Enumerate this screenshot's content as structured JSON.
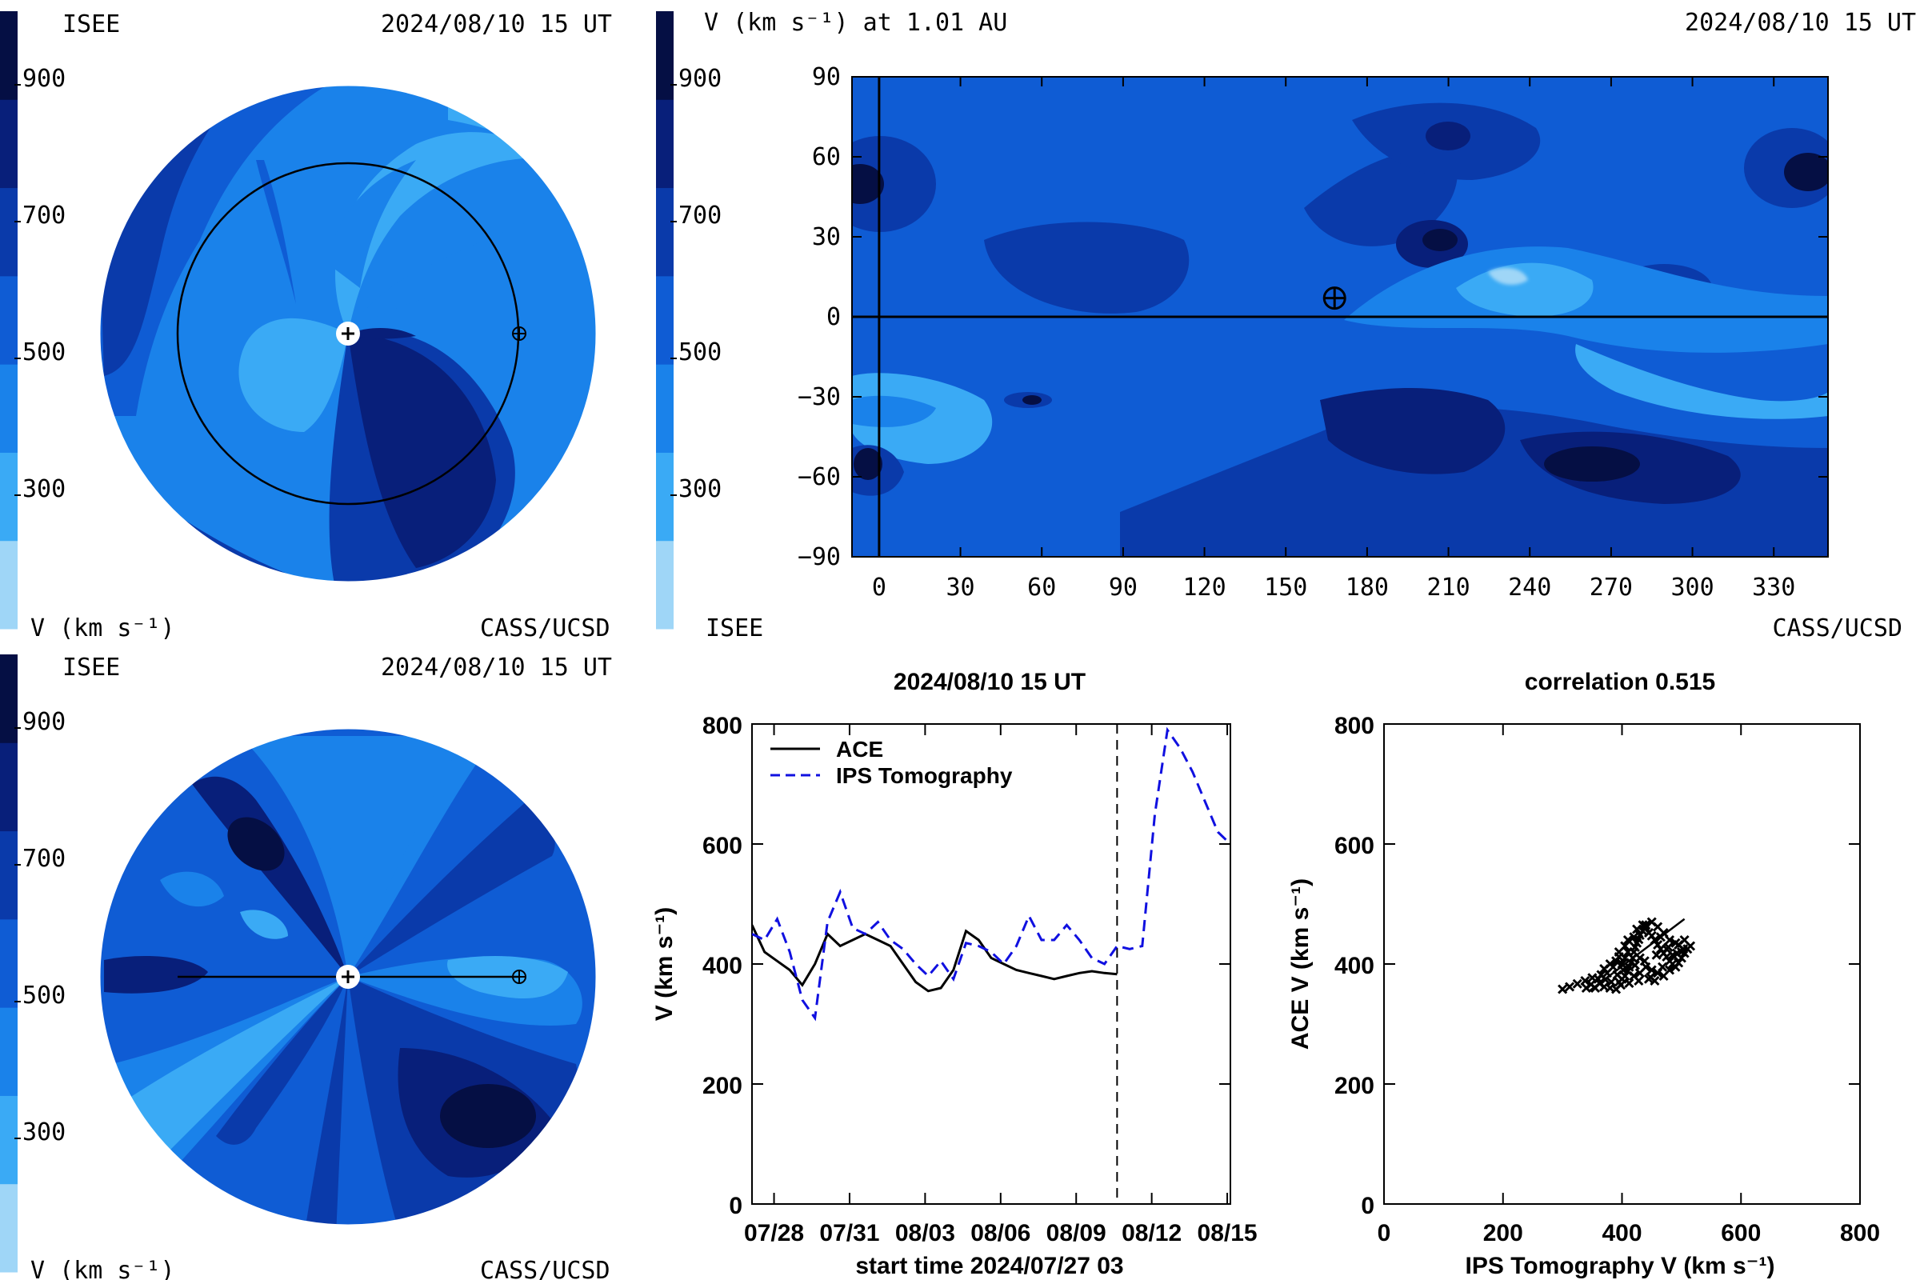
{
  "colors": {
    "levels": [
      "#9fd6f7",
      "#3aaaf5",
      "#1a82ea",
      "#0f5cd4",
      "#0a3aaa",
      "#081f7a",
      "#050f44"
    ],
    "line_obs": "#000000",
    "line_model": "#1010e0"
  },
  "colorbar": {
    "ticks": [
      "900",
      "700",
      "500",
      "300"
    ],
    "unit_label": "V (km s⁻¹)"
  },
  "panel_top_left": {
    "label_left": "ISEE",
    "datetime": "2024/08/10 15 UT",
    "credit": "CASS/UCSD",
    "unit_label": "V (km s⁻¹)"
  },
  "panel_top_right": {
    "title": "V (km s⁻¹) at 1.01 AU",
    "datetime": "2024/08/10 15 UT",
    "label_left": "ISEE",
    "credit": "CASS/UCSD"
  },
  "panel_bottom_left": {
    "label_left": "ISEE",
    "datetime": "2024/08/10 15 UT",
    "credit": "CASS/UCSD",
    "unit_label": "V (km s⁻¹)"
  },
  "timeseries": {
    "title": "2024/08/10 15 UT",
    "ylabel": "V (km s⁻¹)",
    "xlabel": "start time 2024/07/27 03",
    "legend_obs": "ACE",
    "legend_model": "IPS Tomography"
  },
  "scatter": {
    "title": "correlation 0.515",
    "xlabel": "IPS Tomography V (km s⁻¹)",
    "ylabel": "ACE V (km s⁻¹)"
  },
  "chart_data": [
    {
      "type": "heatmap",
      "name": "synoptic map",
      "xlim": [
        -10,
        350
      ],
      "ylim": [
        -90,
        90
      ],
      "x_ticks": [
        0,
        30,
        60,
        90,
        120,
        150,
        180,
        210,
        240,
        270,
        300,
        330
      ],
      "y_ticks": [
        90,
        60,
        30,
        0,
        -30,
        -60,
        -90
      ],
      "earth_position": [
        168,
        7
      ],
      "zero_meridian": 0,
      "equator": 0
    },
    {
      "type": "line",
      "x_ticks": [
        "07/28",
        "07/31",
        "08/03",
        "08/06",
        "08/09",
        "08/12",
        "08/15"
      ],
      "x_tick_days": [
        0.875,
        3.875,
        6.875,
        9.875,
        12.875,
        15.875,
        18.875
      ],
      "xlim": [
        0,
        19.0
      ],
      "ylim": [
        0,
        800
      ],
      "y_ticks": [
        0,
        200,
        400,
        600,
        800
      ],
      "current_time_day": 14.5,
      "series": [
        {
          "name": "ACE",
          "style": "solid",
          "x": [
            0,
            0.5,
            1,
            1.5,
            2,
            2.5,
            3,
            3.5,
            4,
            4.5,
            5,
            5.5,
            6,
            6.5,
            7,
            7.5,
            8,
            8.5,
            9,
            9.5,
            10,
            10.5,
            11,
            11.5,
            12,
            12.5,
            13,
            13.5,
            14,
            14.5
          ],
          "y": [
            465,
            420,
            405,
            390,
            365,
            400,
            450,
            430,
            440,
            450,
            440,
            430,
            400,
            370,
            355,
            360,
            390,
            455,
            440,
            410,
            400,
            390,
            385,
            380,
            375,
            380,
            385,
            388,
            385,
            383
          ]
        },
        {
          "name": "IPS Tomography",
          "style": "dashed",
          "x": [
            0,
            0.5,
            1,
            1.5,
            2,
            2.5,
            3,
            3.5,
            4,
            4.5,
            5,
            5.5,
            6,
            6.5,
            7,
            7.5,
            8,
            8.5,
            9,
            9.5,
            10,
            10.5,
            11,
            11.5,
            12,
            12.5,
            13,
            13.5,
            14,
            14.5,
            15,
            15.5,
            16,
            16.5,
            17,
            17.5,
            18,
            18.5,
            19
          ],
          "y": [
            450,
            440,
            475,
            420,
            340,
            310,
            470,
            520,
            460,
            450,
            470,
            440,
            425,
            400,
            380,
            405,
            375,
            435,
            430,
            420,
            400,
            430,
            480,
            440,
            440,
            465,
            440,
            410,
            400,
            430,
            425,
            430,
            650,
            790,
            760,
            720,
            670,
            620,
            600
          ]
        }
      ]
    },
    {
      "type": "scatter",
      "xlim": [
        0,
        800
      ],
      "ylim": [
        0,
        800
      ],
      "x_ticks": [
        0,
        200,
        400,
        600,
        800
      ],
      "y_ticks": [
        0,
        200,
        400,
        600,
        800
      ],
      "correlation": 0.515,
      "fit_line": [
        [
          345,
          355
        ],
        [
          505,
          475
        ]
      ],
      "points": [
        [
          300,
          358
        ],
        [
          312,
          362
        ],
        [
          325,
          367
        ],
        [
          338,
          372
        ],
        [
          350,
          377
        ],
        [
          360,
          375
        ],
        [
          365,
          382
        ],
        [
          340,
          360
        ],
        [
          355,
          360
        ],
        [
          370,
          362
        ],
        [
          380,
          360
        ],
        [
          390,
          358
        ],
        [
          395,
          370
        ],
        [
          400,
          375
        ],
        [
          405,
          380
        ],
        [
          410,
          388
        ],
        [
          412,
          395
        ],
        [
          415,
          402
        ],
        [
          418,
          410
        ],
        [
          420,
          420
        ],
        [
          422,
          428
        ],
        [
          425,
          435
        ],
        [
          428,
          441
        ],
        [
          430,
          448
        ],
        [
          435,
          455
        ],
        [
          440,
          460
        ],
        [
          445,
          452
        ],
        [
          450,
          447
        ],
        [
          455,
          440
        ],
        [
          460,
          432
        ],
        [
          465,
          425
        ],
        [
          470,
          418
        ],
        [
          475,
          412
        ],
        [
          480,
          405
        ],
        [
          485,
          400
        ],
        [
          490,
          395
        ],
        [
          495,
          402
        ],
        [
          500,
          410
        ],
        [
          505,
          418
        ],
        [
          510,
          425
        ],
        [
          515,
          430
        ],
        [
          400,
          400
        ],
        [
          405,
          410
        ],
        [
          410,
          420
        ],
        [
          430,
          410
        ],
        [
          440,
          395
        ],
        [
          450,
          390
        ],
        [
          460,
          385
        ],
        [
          470,
          380
        ],
        [
          480,
          390
        ],
        [
          420,
          380
        ],
        [
          430,
          385
        ],
        [
          445,
          375
        ],
        [
          455,
          372
        ],
        [
          385,
          395
        ],
        [
          390,
          405
        ],
        [
          395,
          412
        ],
        [
          405,
          430
        ],
        [
          420,
          445
        ],
        [
          435,
          465
        ],
        [
          450,
          470
        ],
        [
          460,
          462
        ],
        [
          470,
          452
        ],
        [
          480,
          440
        ],
        [
          490,
          435
        ],
        [
          500,
          420
        ],
        [
          375,
          385
        ],
        [
          370,
          392
        ],
        [
          380,
          400
        ],
        [
          395,
          420
        ],
        [
          410,
          440
        ],
        [
          425,
          458
        ],
        [
          440,
          465
        ],
        [
          465,
          445
        ],
        [
          475,
          425
        ],
        [
          485,
          415
        ],
        [
          495,
          432
        ],
        [
          505,
          440
        ],
        [
          382,
          370
        ],
        [
          398,
          365
        ],
        [
          412,
          368
        ],
        [
          428,
          372
        ],
        [
          448,
          378
        ],
        [
          468,
          395
        ],
        [
          488,
          412
        ],
        [
          503,
          425
        ],
        [
          362,
          368
        ],
        [
          348,
          366
        ],
        [
          372,
          374
        ],
        [
          392,
          382
        ],
        [
          402,
          390
        ],
        [
          422,
          398
        ],
        [
          438,
          405
        ],
        [
          458,
          415
        ],
        [
          478,
          428
        ],
        [
          492,
          418
        ]
      ]
    }
  ]
}
